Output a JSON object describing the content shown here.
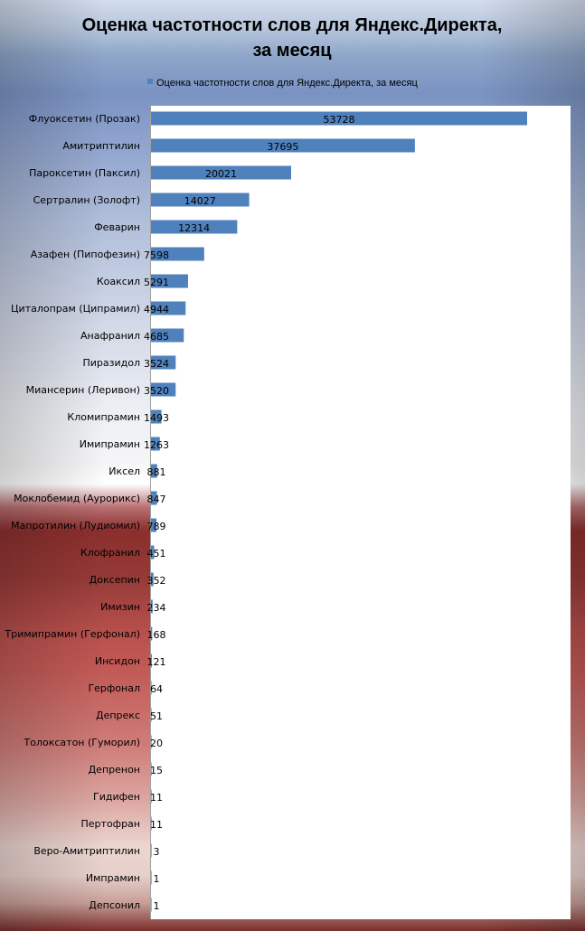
{
  "chart_data": {
    "type": "bar",
    "orientation": "horizontal",
    "title": "Оценка частотности слов для Яндекс.Директа, за месяц",
    "title_lines": [
      "Оценка частотности слов для Яндекс.Директа,",
      "за месяц"
    ],
    "legend_position": "top",
    "series": [
      {
        "name": "Оценка частотности слов для Яндекс.Директа,  за месяц",
        "color": "#4f81bd",
        "values": [
          53728,
          37695,
          20021,
          14027,
          12314,
          7598,
          5291,
          4944,
          4685,
          3524,
          3520,
          1493,
          1263,
          881,
          847,
          789,
          451,
          352,
          234,
          168,
          121,
          64,
          51,
          20,
          15,
          11,
          11,
          3,
          1,
          1
        ]
      }
    ],
    "categories": [
      "Флуоксетин (Прозак)",
      "Амитриптилин",
      "Пароксетин (Паксил)",
      "Сертралин (Золофт)",
      "Феварин",
      "Азафен (Пипофезин)",
      "Коаксил",
      "Циталопрам (Ципрамил)",
      "Анафранил",
      "Пиразидол",
      "Миансерин (Леривон)",
      "Кломипрамин",
      "Имипрамин",
      "Иксел",
      "Моклобемид  (Аурорикс)",
      "Мапротилин (Лудиомил)",
      "Клофранил",
      "Доксепин",
      "Имизин",
      "Тримипрамин (Герфонал)",
      "Инсидон",
      "Герфонал",
      "Депрекс",
      "Толоксатон (Гуморил)",
      "Депренон",
      "Гидифен",
      "Пертофран",
      "Веро-Амитриптилин",
      "Импрамин",
      "Депсонил"
    ],
    "xlim": [
      0,
      60000
    ],
    "grid": false,
    "data_labels": true
  }
}
